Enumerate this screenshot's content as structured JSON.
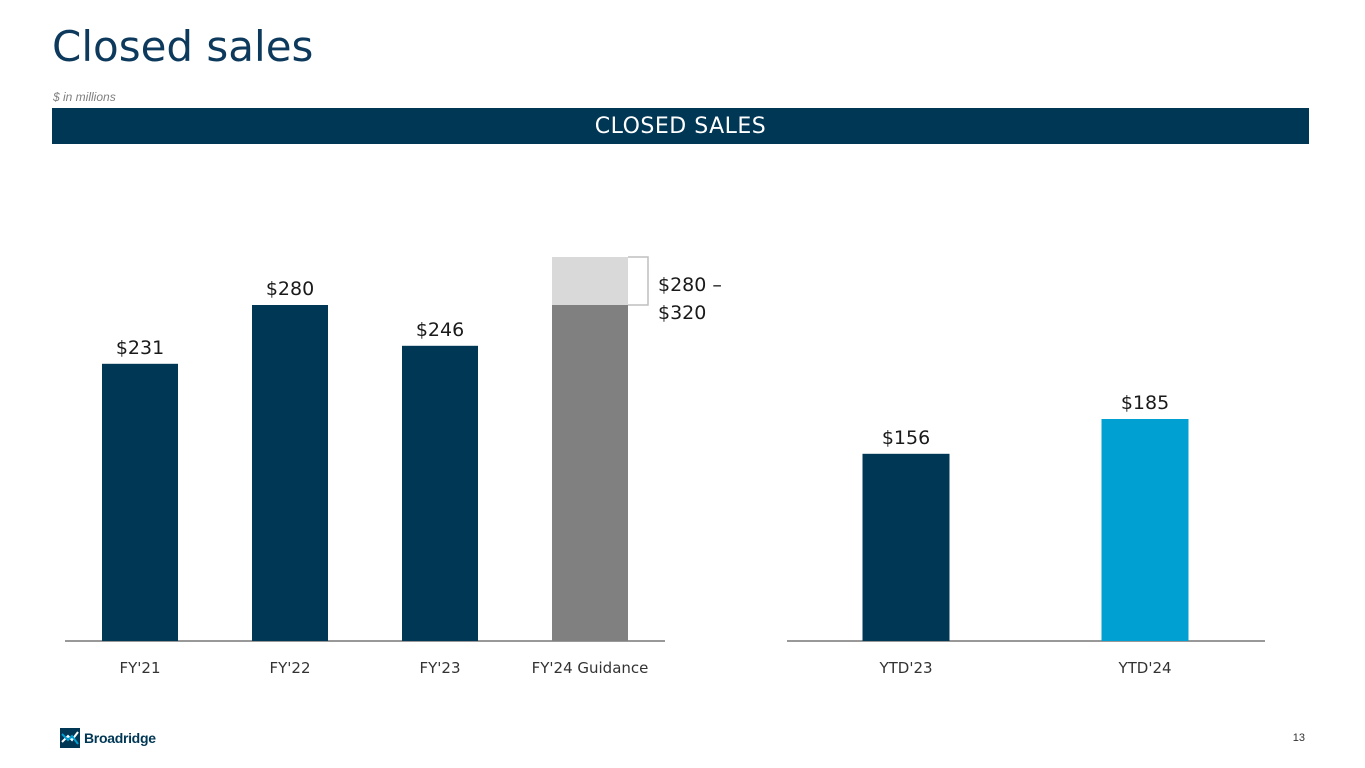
{
  "header": {
    "title": "Closed sales",
    "units_note": "$ in millions",
    "banner": "CLOSED SALES"
  },
  "chart_data": [
    {
      "type": "bar",
      "categories": [
        "FY'21",
        "FY'22",
        "FY'23",
        "FY'24 Guidance"
      ],
      "values": [
        231,
        280,
        246,
        280
      ],
      "value_labels": [
        "$231",
        "$280",
        "$246",
        ""
      ],
      "guidance_range": {
        "low": 280,
        "high": 320,
        "label_line1": "$280 –",
        "label_line2": "$320"
      },
      "colors": [
        "#003755",
        "#003755",
        "#003755",
        "#808080"
      ],
      "range_color": "#d9d9d9",
      "ylim": [
        0,
        330
      ]
    },
    {
      "type": "bar",
      "categories": [
        "YTD'23",
        "YTD'24"
      ],
      "values": [
        156,
        185
      ],
      "value_labels": [
        "$156",
        "$185"
      ],
      "colors": [
        "#003755",
        "#00a0d2"
      ],
      "ylim": [
        0,
        330
      ]
    }
  ],
  "footer": {
    "logo_text": "Broadridge",
    "page_number": "13"
  }
}
